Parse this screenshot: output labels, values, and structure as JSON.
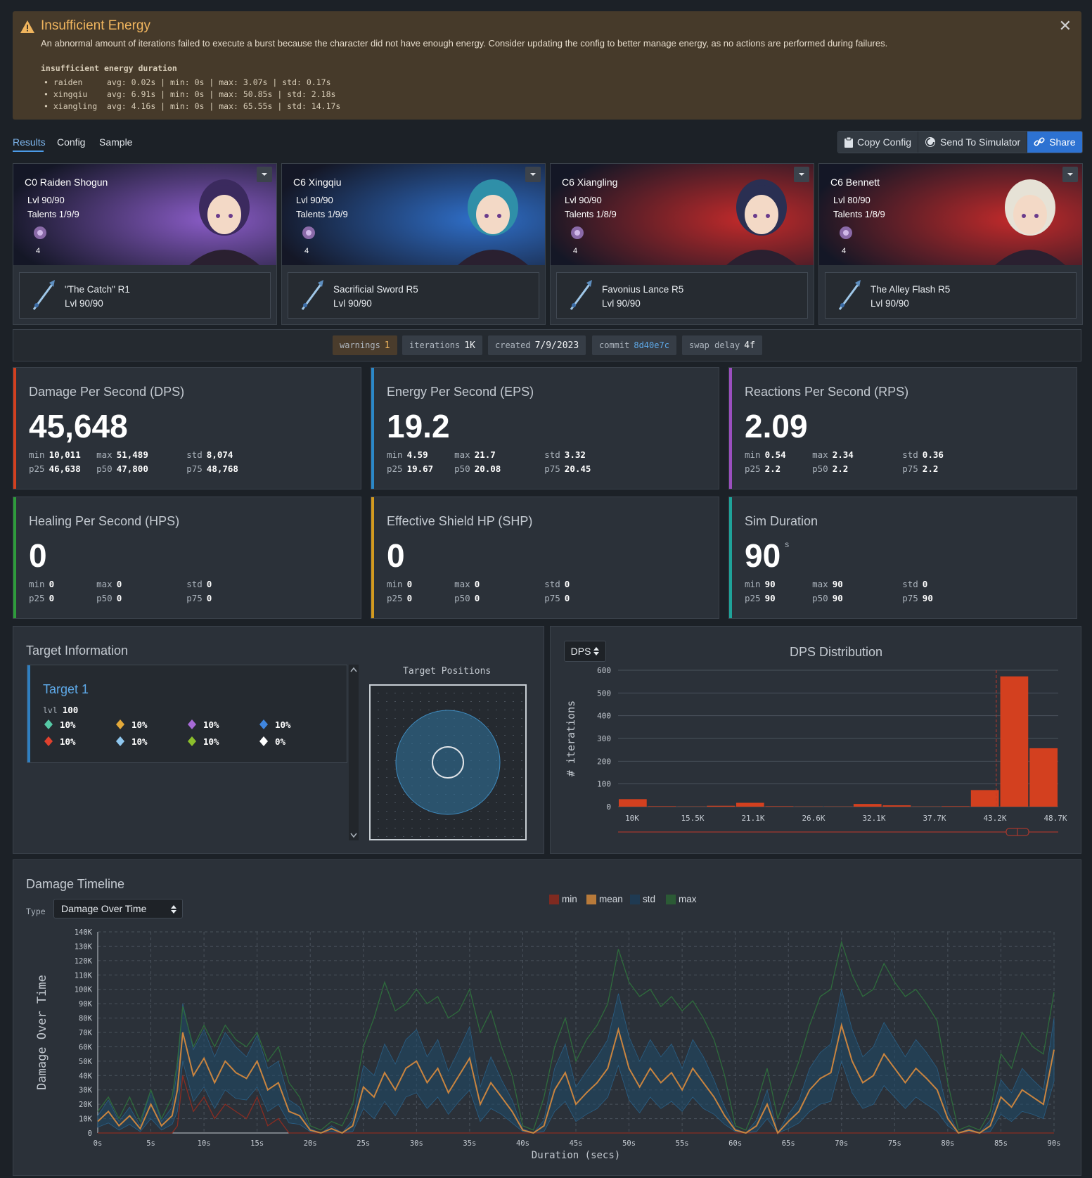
{
  "warning": {
    "title": "Insufficient Energy",
    "message": "An abnormal amount of iterations failed to execute a burst because the character did not have enough energy. Consider updating the config to better manage energy, as no actions are performed during failures.",
    "header": "insufficient energy duration",
    "rows": [
      "• raiden     avg: 0.02s | min: 0s | max: 3.07s | std: 0.17s",
      "• xingqiu    avg: 6.91s | min: 0s | max: 50.85s | std: 2.18s",
      "• xiangling  avg: 4.16s | min: 0s | max: 65.55s | std: 14.17s"
    ],
    "close": "✕"
  },
  "tabs": [
    "Results",
    "Config",
    "Sample"
  ],
  "actions": {
    "copy": "Copy Config",
    "send": "Send To Simulator",
    "share": "Share"
  },
  "characters": [
    {
      "name": "C0 Raiden Shogun",
      "level": "Lvl 90/90",
      "talents": "Talents 1/9/9",
      "count": "4",
      "weapon": "\"The Catch\" R1",
      "weapon_level": "Lvl 90/90",
      "color": "#8a5cc7"
    },
    {
      "name": "C6 Xingqiu",
      "level": "Lvl 90/90",
      "talents": "Talents 1/9/9",
      "count": "4",
      "weapon": "Sacrificial Sword R5",
      "weapon_level": "Lvl 90/90",
      "color": "#2f6fc9"
    },
    {
      "name": "C6 Xiangling",
      "level": "Lvl 90/90",
      "talents": "Talents 1/8/9",
      "count": "4",
      "weapon": "Favonius Lance R5",
      "weapon_level": "Lvl 90/90",
      "color": "#c22a2a"
    },
    {
      "name": "C6 Bennett",
      "level": "Lvl 80/90",
      "talents": "Talents 1/8/9",
      "count": "4",
      "weapon": "The Alley Flash R5",
      "weapon_level": "Lvl 90/90",
      "color": "#c22a2a"
    }
  ],
  "meta": [
    {
      "key": "warnings",
      "value": "1"
    },
    {
      "key": "iterations",
      "value": "1K"
    },
    {
      "key": "created",
      "value": "7/9/2023"
    },
    {
      "key": "commit",
      "value": "8d40e7c"
    },
    {
      "key": "swap delay",
      "value": "4f"
    }
  ],
  "stats": [
    {
      "label": "Damage Per Second (DPS)",
      "value": "45,648",
      "unit": "",
      "min": "10,011",
      "max": "51,489",
      "std": "8,074",
      "p25": "46,638",
      "p50": "47,800",
      "p75": "48,768",
      "color": "#d3401f"
    },
    {
      "label": "Energy Per Second (EPS)",
      "value": "19.2",
      "unit": "",
      "min": "4.59",
      "max": "21.7",
      "std": "3.32",
      "p25": "19.67",
      "p50": "20.08",
      "p75": "20.45",
      "color": "#2b88c8"
    },
    {
      "label": "Reactions Per Second (RPS)",
      "value": "2.09",
      "unit": "",
      "min": "0.54",
      "max": "2.34",
      "std": "0.36",
      "p25": "2.2",
      "p50": "2.2",
      "p75": "2.2",
      "color": "#9b4fbf"
    },
    {
      "label": "Healing Per Second (HPS)",
      "value": "0",
      "unit": "",
      "min": "0",
      "max": "0",
      "std": "0",
      "p25": "0",
      "p50": "0",
      "p75": "0",
      "color": "#2e9c3b"
    },
    {
      "label": "Effective Shield HP (SHP)",
      "value": "0",
      "unit": "",
      "min": "0",
      "max": "0",
      "std": "0",
      "p25": "0",
      "p50": "0",
      "p75": "0",
      "color": "#d39a1f"
    },
    {
      "label": "Sim Duration",
      "value": "90",
      "unit": "s",
      "min": "90",
      "max": "90",
      "std": "0",
      "p25": "90",
      "p50": "90",
      "p75": "90",
      "color": "#1fa39a"
    }
  ],
  "target": {
    "title": "Target Information",
    "name": "Target 1",
    "lvl_label": "lvl",
    "level": "100",
    "resists": [
      {
        "icon": "anemo-icon",
        "value": "10%",
        "color": "#56c9a6"
      },
      {
        "icon": "geo-icon",
        "value": "10%",
        "color": "#e3a93a"
      },
      {
        "icon": "electro-icon",
        "value": "10%",
        "color": "#a76ad6"
      },
      {
        "icon": "hydro-icon",
        "value": "10%",
        "color": "#3f86e0"
      },
      {
        "icon": "pyro-icon",
        "value": "10%",
        "color": "#e0412e"
      },
      {
        "icon": "cryo-icon",
        "value": "10%",
        "color": "#8fc7ef"
      },
      {
        "icon": "dendro-icon",
        "value": "10%",
        "color": "#8cbf2c"
      },
      {
        "icon": "physical-icon",
        "value": "0%",
        "color": "#ffffff"
      }
    ],
    "positions_title": "Target Positions"
  },
  "distribution": {
    "selector": "DPS",
    "title": "DPS Distribution",
    "chart_data": {
      "type": "bar",
      "title": "DPS Distribution",
      "ylabel": "# iterations",
      "ylim": [
        0,
        600
      ],
      "yticks": [
        0,
        100,
        200,
        300,
        400,
        500,
        600
      ],
      "xticks": [
        "10K",
        "15.5K",
        "21.1K",
        "26.6K",
        "32.1K",
        "37.7K",
        "43.2K",
        "48.7K"
      ],
      "xlim": [
        10011,
        51489
      ],
      "bin_starts": [
        10011,
        12777,
        15542,
        18307,
        21072,
        23837,
        26602,
        29367,
        32133,
        34898,
        37663,
        40428,
        43193,
        45958,
        48724
      ],
      "values": [
        33,
        2,
        1,
        4,
        17,
        2,
        1,
        1,
        12,
        6,
        1,
        2,
        73,
        573,
        257
      ],
      "mean_line": 45648,
      "color": "#d3401f"
    }
  },
  "timeline": {
    "title": "Damage Timeline",
    "type_label": "Type",
    "type_value": "Damage Over Time",
    "legend": [
      {
        "name": "min",
        "color": "#7f2a20"
      },
      {
        "name": "mean",
        "color": "#b87a3a"
      },
      {
        "name": "std",
        "color": "#1f3a52"
      },
      {
        "name": "max",
        "color": "#2b5a35"
      }
    ],
    "chart_data": {
      "type": "line",
      "xlabel": "Duration (secs)",
      "ylabel": "Damage Over Time",
      "xlim": [
        0,
        90
      ],
      "ylim": [
        0,
        140000
      ],
      "xticks": [
        "0s",
        "5s",
        "10s",
        "15s",
        "20s",
        "25s",
        "30s",
        "35s",
        "40s",
        "45s",
        "50s",
        "55s",
        "60s",
        "65s",
        "70s",
        "75s",
        "80s",
        "85s",
        "90s"
      ],
      "yticks": [
        "0",
        "10K",
        "20K",
        "30K",
        "40K",
        "50K",
        "60K",
        "70K",
        "80K",
        "90K",
        "100K",
        "110K",
        "120K",
        "130K",
        "140K"
      ],
      "x": [
        0,
        1,
        2,
        3,
        4,
        5,
        6,
        7,
        7.5,
        8,
        9,
        10,
        11,
        12,
        13,
        14,
        15,
        16,
        17,
        18,
        19,
        20,
        21,
        22,
        23,
        24,
        25,
        26,
        27,
        28,
        29,
        30,
        31,
        32,
        33,
        34,
        35,
        36,
        37,
        38,
        39,
        40,
        41,
        42,
        43,
        44,
        45,
        46,
        47,
        48,
        49,
        50,
        51,
        52,
        53,
        54,
        55,
        56,
        57,
        58,
        59,
        60,
        61,
        62,
        63,
        64,
        65,
        66,
        67,
        68,
        69,
        70,
        71,
        72,
        73,
        74,
        75,
        76,
        77,
        78,
        79,
        80,
        81,
        82,
        83,
        84,
        85,
        86,
        87,
        88,
        89,
        90
      ],
      "series": [
        {
          "name": "mean",
          "values": [
            8000,
            15000,
            5000,
            12000,
            3000,
            20000,
            5000,
            12000,
            30000,
            70000,
            40000,
            52000,
            35000,
            50000,
            42000,
            38000,
            50000,
            30000,
            35000,
            15000,
            12000,
            2000,
            0,
            3000,
            0,
            5000,
            32000,
            25000,
            42000,
            30000,
            45000,
            50000,
            35000,
            45000,
            28000,
            40000,
            52000,
            20000,
            35000,
            25000,
            15000,
            2000,
            0,
            5000,
            30000,
            42000,
            20000,
            28000,
            35000,
            45000,
            72000,
            45000,
            32000,
            45000,
            35000,
            42000,
            30000,
            45000,
            35000,
            25000,
            12000,
            2000,
            0,
            5000,
            20000,
            0,
            8000,
            15000,
            30000,
            38000,
            42000,
            75000,
            50000,
            35000,
            40000,
            55000,
            45000,
            35000,
            45000,
            38000,
            30000,
            10000,
            0,
            2000,
            0,
            5000,
            25000,
            18000,
            30000,
            25000,
            20000,
            58000
          ]
        },
        {
          "name": "max",
          "values": [
            15000,
            25000,
            10000,
            25000,
            8000,
            30000,
            10000,
            25000,
            50000,
            88000,
            60000,
            75000,
            60000,
            75000,
            65000,
            60000,
            70000,
            50000,
            60000,
            35000,
            25000,
            5000,
            2000,
            8000,
            5000,
            20000,
            60000,
            80000,
            105000,
            85000,
            90000,
            100000,
            90000,
            95000,
            80000,
            85000,
            100000,
            70000,
            85000,
            60000,
            40000,
            5000,
            2000,
            25000,
            60000,
            80000,
            50000,
            65000,
            75000,
            90000,
            128000,
            105000,
            95000,
            100000,
            88000,
            95000,
            85000,
            92000,
            80000,
            65000,
            40000,
            5000,
            2000,
            20000,
            45000,
            10000,
            30000,
            50000,
            75000,
            95000,
            100000,
            133000,
            110000,
            95000,
            100000,
            118000,
            105000,
            95000,
            100000,
            90000,
            78000,
            35000,
            2000,
            5000,
            2000,
            15000,
            55000,
            45000,
            70000,
            60000,
            55000,
            98000
          ]
        },
        {
          "name": "std",
          "values": [
            4000,
            8000,
            3000,
            6000,
            2000,
            10000,
            3000,
            6000,
            15000,
            20000,
            18000,
            20000,
            18000,
            20000,
            18000,
            15000,
            18000,
            15000,
            15000,
            8000,
            6000,
            1000,
            0,
            2000,
            0,
            4000,
            15000,
            15000,
            20000,
            18000,
            20000,
            22000,
            18000,
            20000,
            15000,
            18000,
            22000,
            12000,
            18000,
            12000,
            8000,
            1000,
            0,
            4000,
            15000,
            20000,
            12000,
            15000,
            18000,
            20000,
            25000,
            22000,
            18000,
            20000,
            18000,
            20000,
            15000,
            20000,
            18000,
            12000,
            6000,
            1000,
            0,
            4000,
            10000,
            0,
            5000,
            8000,
            15000,
            18000,
            20000,
            25000,
            22000,
            18000,
            20000,
            22000,
            20000,
            18000,
            20000,
            18000,
            15000,
            5000,
            0,
            1000,
            0,
            4000,
            12000,
            10000,
            15000,
            12000,
            10000,
            22000
          ]
        },
        {
          "name": "min",
          "values": [
            0,
            0,
            0,
            0,
            0,
            0,
            0,
            0,
            5000,
            40000,
            15000,
            25000,
            10000,
            20000,
            15000,
            10000,
            25000,
            5000,
            10000,
            0,
            0,
            0,
            0,
            0,
            0,
            0,
            0,
            0,
            0,
            0,
            0,
            0,
            0,
            0,
            0,
            0,
            0,
            0,
            0,
            0,
            0,
            0,
            0,
            0,
            0,
            0,
            0,
            0,
            0,
            0,
            0,
            0,
            0,
            0,
            0,
            0,
            0,
            0,
            0,
            0,
            0,
            0,
            0,
            0,
            0,
            0,
            0,
            0,
            0,
            0,
            0,
            0,
            0,
            0,
            0,
            0,
            0,
            0,
            0,
            0,
            0,
            0,
            0,
            0,
            0,
            0,
            0,
            0,
            0,
            0,
            0,
            0
          ]
        }
      ]
    }
  }
}
